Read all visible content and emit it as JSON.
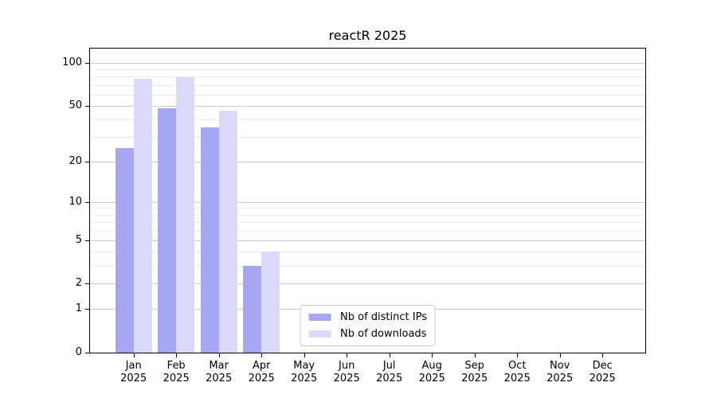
{
  "title": "reactR 2025",
  "chart_data": {
    "type": "bar",
    "title": "reactR 2025",
    "categories": [
      "Jan 2025",
      "Feb 2025",
      "Mar 2025",
      "Apr 2025",
      "May 2025",
      "Jun 2025",
      "Jul 2025",
      "Aug 2025",
      "Sep 2025",
      "Oct 2025",
      "Nov 2025",
      "Dec 2025"
    ],
    "series": [
      {
        "name": "Nb of distinct IPs",
        "color": "#a6a6f2",
        "values": [
          25,
          48,
          35,
          3,
          0,
          0,
          0,
          0,
          0,
          0,
          0,
          0
        ]
      },
      {
        "name": "Nb of downloads",
        "color": "#d9d9f8",
        "values": [
          77,
          79,
          46,
          4,
          0,
          0,
          0,
          0,
          0,
          0,
          0,
          0
        ]
      }
    ],
    "xlabel": "",
    "ylabel": "",
    "yscale": "log10(value+1)",
    "ylim": [
      0,
      126
    ],
    "yticks_major": [
      0,
      1,
      2,
      5,
      10,
      20,
      50,
      100
    ],
    "yticks_minor": [
      3,
      4,
      6,
      7,
      8,
      9,
      30,
      40,
      60,
      70,
      80,
      90
    ],
    "grid": "horizontal",
    "legend_position": "lower center",
    "background": "#ffffff"
  }
}
